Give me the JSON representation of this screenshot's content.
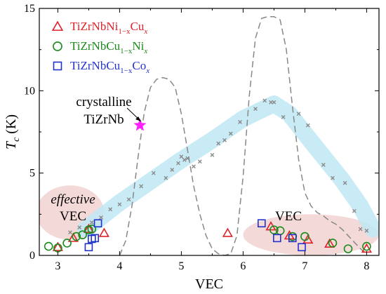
{
  "chart_data": {
    "type": "scatter",
    "xlabel": "VEC",
    "ylabel": "T_c (K)",
    "xlim": [
      2.7,
      8.2
    ],
    "ylim": [
      0,
      15
    ],
    "xticks": [
      3,
      4,
      5,
      6,
      7,
      8
    ],
    "yticks": [
      0,
      5,
      10,
      15
    ],
    "legend_placement": "top-left",
    "series": [
      {
        "name": "TiZrNbNi1−xCux",
        "parts": [
          "TiZrNbNi",
          "1−x",
          "Cu",
          "x"
        ],
        "marker": "triangle",
        "color": "#e0202a",
        "x": [
          3.0,
          3.25,
          3.5,
          3.75,
          5.75,
          6.45,
          6.75,
          7.05,
          7.4,
          8.0
        ],
        "y": [
          0.5,
          1.05,
          1.6,
          1.35,
          1.35,
          1.75,
          1.2,
          0.95,
          0.7,
          0.4
        ]
      },
      {
        "name": "TiZrNbCu1−xNix",
        "parts": [
          "TiZrNbCu",
          "1−x",
          "Ni",
          "x"
        ],
        "marker": "circle",
        "color": "#1a8a1a",
        "x": [
          2.85,
          3.0,
          3.15,
          3.3,
          3.4,
          3.5,
          3.55,
          6.5,
          6.6,
          6.8,
          7.0,
          7.45,
          7.7,
          8.0
        ],
        "y": [
          0.55,
          0.45,
          0.75,
          1.15,
          1.25,
          1.55,
          1.6,
          1.55,
          1.5,
          1.15,
          1.15,
          0.75,
          0.4,
          0.55
        ]
      },
      {
        "name": "TiZrNbCu1−xCox",
        "parts": [
          "TiZrNbCu",
          "1−x",
          "Co",
          "x"
        ],
        "marker": "square",
        "color": "#2233cc",
        "x": [
          3.5,
          3.55,
          3.6,
          3.65,
          6.3,
          6.55,
          6.8,
          6.95
        ],
        "y": [
          0.5,
          1.0,
          1.05,
          1.95,
          1.95,
          1.05,
          1.05,
          0.5
        ]
      },
      {
        "name": "",
        "marker": "x",
        "color": "#8a8a8a",
        "x": [
          3.2,
          3.35,
          3.55,
          3.7,
          3.85,
          4.0,
          4.15,
          4.35,
          4.55,
          4.75,
          4.85,
          4.95,
          5.0,
          5.05,
          5.1,
          5.2,
          5.3,
          5.5,
          5.6,
          5.7,
          5.8,
          5.95,
          6.2,
          6.35,
          6.45,
          6.5,
          6.65,
          6.9,
          7.05,
          7.3,
          7.45,
          7.65,
          7.8,
          7.9,
          8.0
        ],
        "y": [
          1.4,
          1.7,
          2.0,
          2.3,
          2.8,
          3.1,
          3.4,
          4.2,
          5.0,
          4.7,
          5.2,
          5.6,
          6.0,
          5.8,
          5.9,
          5.4,
          5.7,
          6.1,
          6.8,
          7.0,
          7.4,
          8.1,
          8.9,
          9.4,
          9.3,
          9.3,
          8.4,
          8.6,
          7.9,
          5.5,
          4.7,
          4.4,
          2.7,
          1.6,
          1.5
        ]
      }
    ],
    "highlight_point": {
      "label_line1": "crystalline",
      "label_line2": "TiZrNb",
      "x": 4.33,
      "y": 7.9,
      "marker": "star",
      "color": "#ff22ff"
    },
    "band": {
      "color": "#bfe8f5",
      "x": [
        3.45,
        4.0,
        4.5,
        5.0,
        5.5,
        6.0,
        6.5,
        6.75,
        7.0,
        7.3,
        7.6,
        7.9,
        8.1
      ],
      "y": [
        1.6,
        3.2,
        4.5,
        5.8,
        7.0,
        8.3,
        9.2,
        8.6,
        7.4,
        6.0,
        4.6,
        3.0,
        1.6
      ]
    },
    "dashed_curve": {
      "color": "#888888",
      "x": [
        4.0,
        4.1,
        4.2,
        4.3,
        4.4,
        4.5,
        4.6,
        4.7,
        4.8,
        4.9,
        5.0,
        5.1,
        5.2,
        5.3,
        5.4,
        5.5,
        5.6,
        5.7,
        5.8,
        5.9,
        6.0,
        6.1,
        6.2,
        6.3,
        6.4,
        6.5,
        6.6,
        6.7,
        6.8,
        6.9,
        7.0,
        7.1,
        7.2,
        7.3,
        7.4,
        7.5,
        7.6,
        7.7,
        7.8,
        7.9,
        8.0
      ],
      "y": [
        0.0,
        0.9,
        3.0,
        6.0,
        8.7,
        10.2,
        10.7,
        10.8,
        10.7,
        10.2,
        8.6,
        6.4,
        4.2,
        2.5,
        1.2,
        0.4,
        0.1,
        0.0,
        0.1,
        1.2,
        4.8,
        9.7,
        13.2,
        14.4,
        14.5,
        14.5,
        14.3,
        12.5,
        9.0,
        5.8,
        3.8,
        3.0,
        2.6,
        2.4,
        2.1,
        1.9,
        1.6,
        1.2,
        0.8,
        0.4,
        0.1
      ]
    },
    "regions": [
      {
        "label_line1": "effective",
        "label_line2": "VEC",
        "cx": 3.2,
        "cy": 2.6,
        "rx": 0.55,
        "ry": 1.65,
        "color": "#f0cccc"
      },
      {
        "label": "VEC",
        "cx": 7.1,
        "cy": 1.25,
        "rx": 1.1,
        "ry": 1.25,
        "color": "#f0cccc"
      }
    ]
  }
}
